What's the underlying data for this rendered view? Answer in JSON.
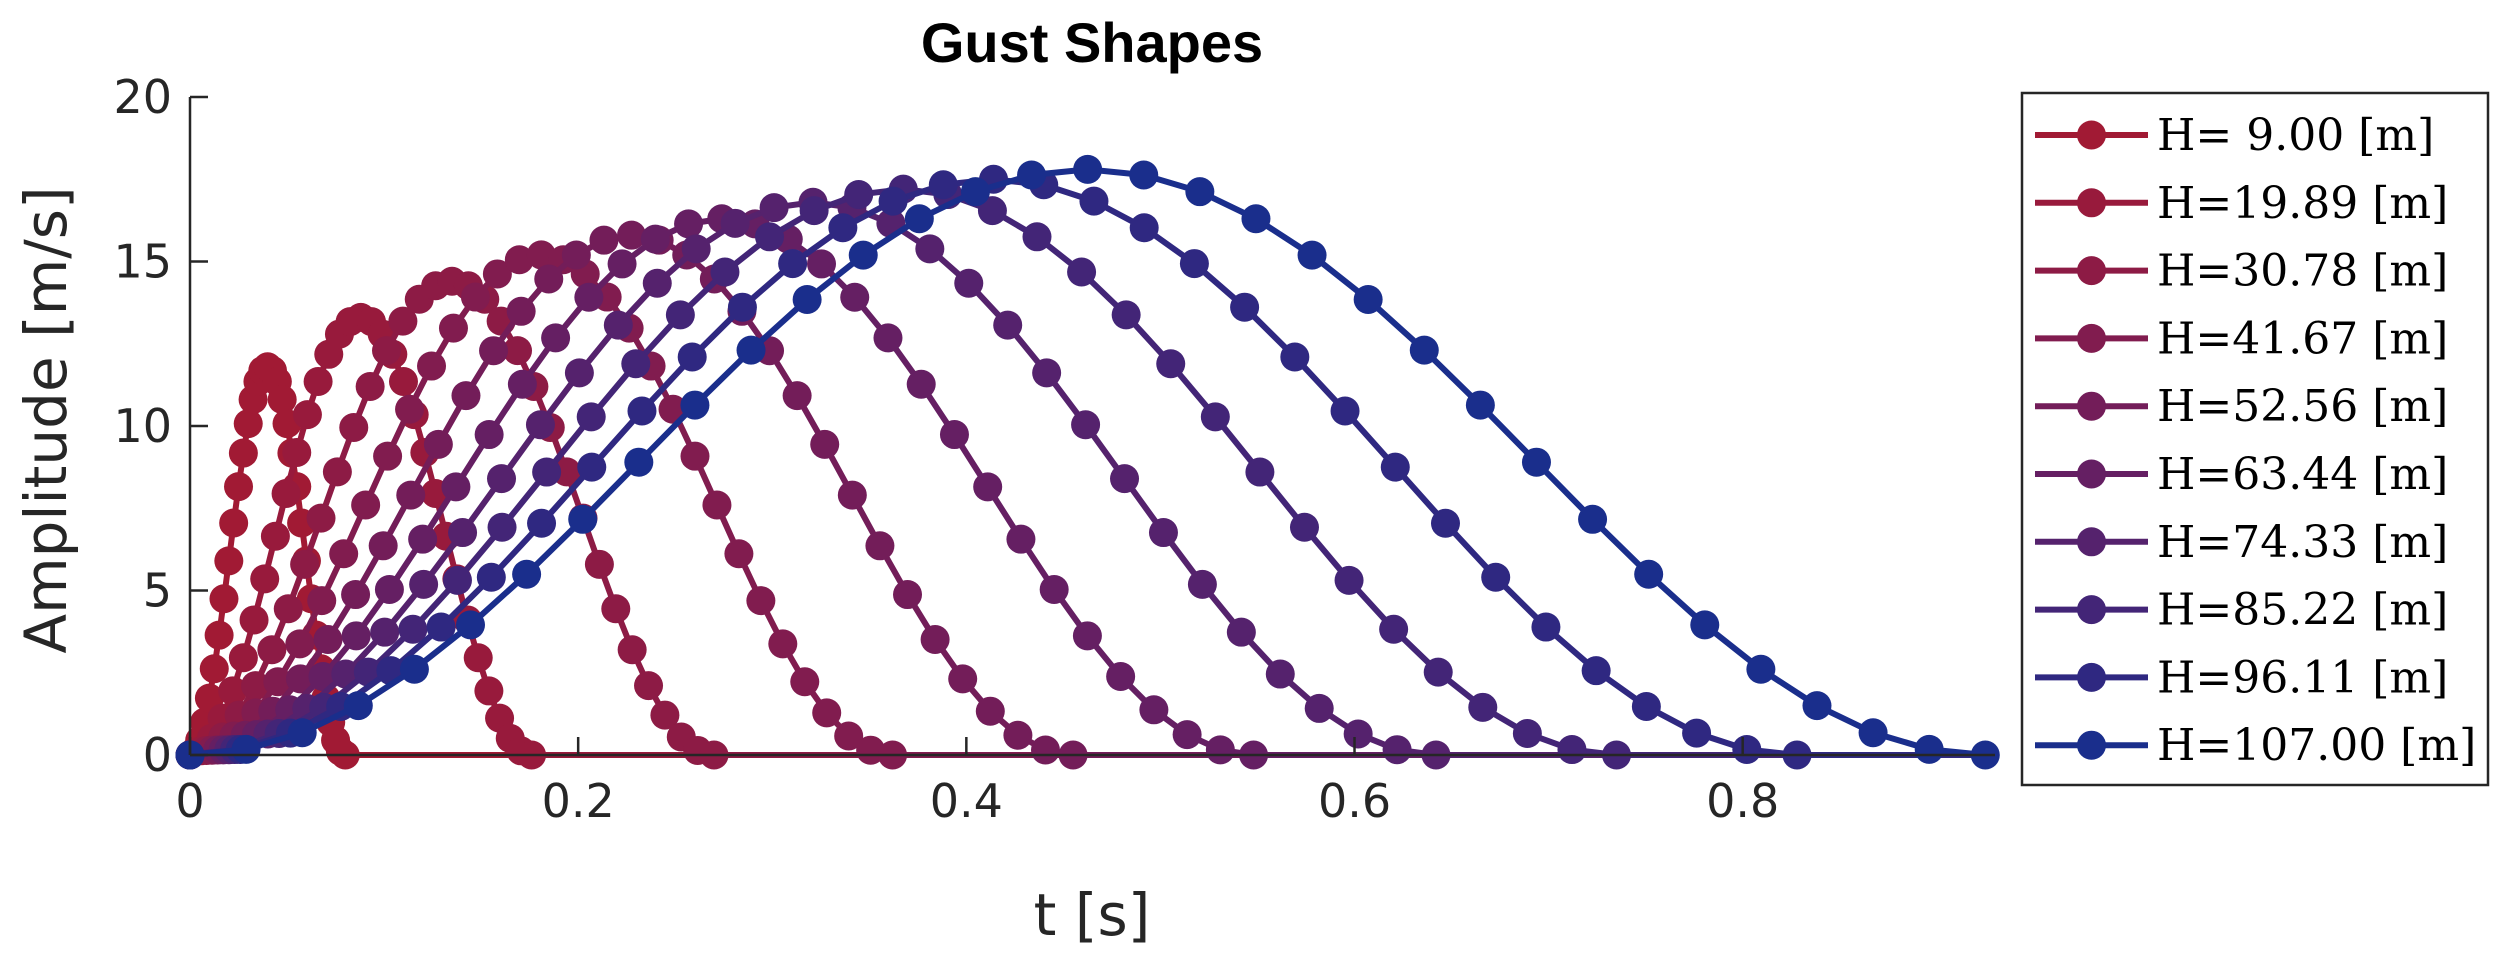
{
  "chart_data": {
    "type": "line",
    "title": "Gust Shapes",
    "xlabel": "t [s]",
    "ylabel": "Amplitude [m/s]",
    "xlim": [
      0,
      0.93
    ],
    "ylim": [
      0,
      20
    ],
    "xticks": [
      0,
      0.2,
      0.4,
      0.6,
      0.8
    ],
    "xtick_labels": [
      "0",
      "0.2",
      "0.4",
      "0.6",
      "0.8"
    ],
    "yticks": [
      0,
      5,
      10,
      15,
      20
    ],
    "ytick_labels": [
      "0",
      "5",
      "10",
      "15",
      "20"
    ],
    "grid": false,
    "legend_position": "outside-right",
    "marker": "circle",
    "shape": "1-cosine",
    "series": [
      {
        "name": "H= 9.00 [m]",
        "gust_length_m": 9.0,
        "duration_s": 0.08,
        "peak": 11.8,
        "color": "#a11a34"
      },
      {
        "name": "H=19.89 [m]",
        "gust_length_m": 19.89,
        "duration_s": 0.176,
        "peak": 13.3,
        "color": "#981a3c"
      },
      {
        "name": "H=30.78 [m]",
        "gust_length_m": 30.78,
        "duration_s": 0.27,
        "peak": 14.4,
        "color": "#8d1b45"
      },
      {
        "name": "H=41.67 [m]",
        "gust_length_m": 41.67,
        "duration_s": 0.362,
        "peak": 15.2,
        "color": "#811c4f"
      },
      {
        "name": "H=52.56 [m]",
        "gust_length_m": 52.56,
        "duration_s": 0.455,
        "peak": 15.8,
        "color": "#731d59"
      },
      {
        "name": "H=63.44 [m]",
        "gust_length_m": 63.44,
        "duration_s": 0.548,
        "peak": 16.3,
        "color": "#651f63"
      },
      {
        "name": "H=74.33 [m]",
        "gust_length_m": 74.33,
        "duration_s": 0.642,
        "peak": 16.8,
        "color": "#55226d"
      },
      {
        "name": "H=85.22 [m]",
        "gust_length_m": 85.22,
        "duration_s": 0.735,
        "peak": 17.2,
        "color": "#432577"
      },
      {
        "name": "H=96.11 [m]",
        "gust_length_m": 96.11,
        "duration_s": 0.828,
        "peak": 17.5,
        "color": "#2f2881"
      },
      {
        "name": "H=107.00 [m]",
        "gust_length_m": 107.0,
        "duration_s": 0.925,
        "peak": 17.8,
        "color": "#1a2e8c"
      }
    ]
  }
}
